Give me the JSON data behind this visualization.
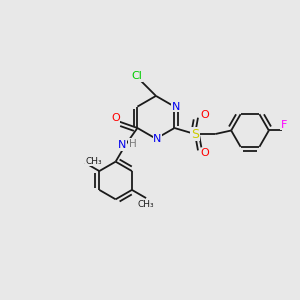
{
  "background_color": "#e8e8e8",
  "bond_color": "#1a1a1a",
  "atom_colors": {
    "Cl": "#00cc00",
    "N": "#0000ee",
    "O": "#ff0000",
    "S": "#cccc00",
    "F": "#ff00ff",
    "C": "#1a1a1a",
    "H": "#7a7a7a"
  },
  "figsize": [
    3.0,
    3.0
  ],
  "dpi": 100
}
